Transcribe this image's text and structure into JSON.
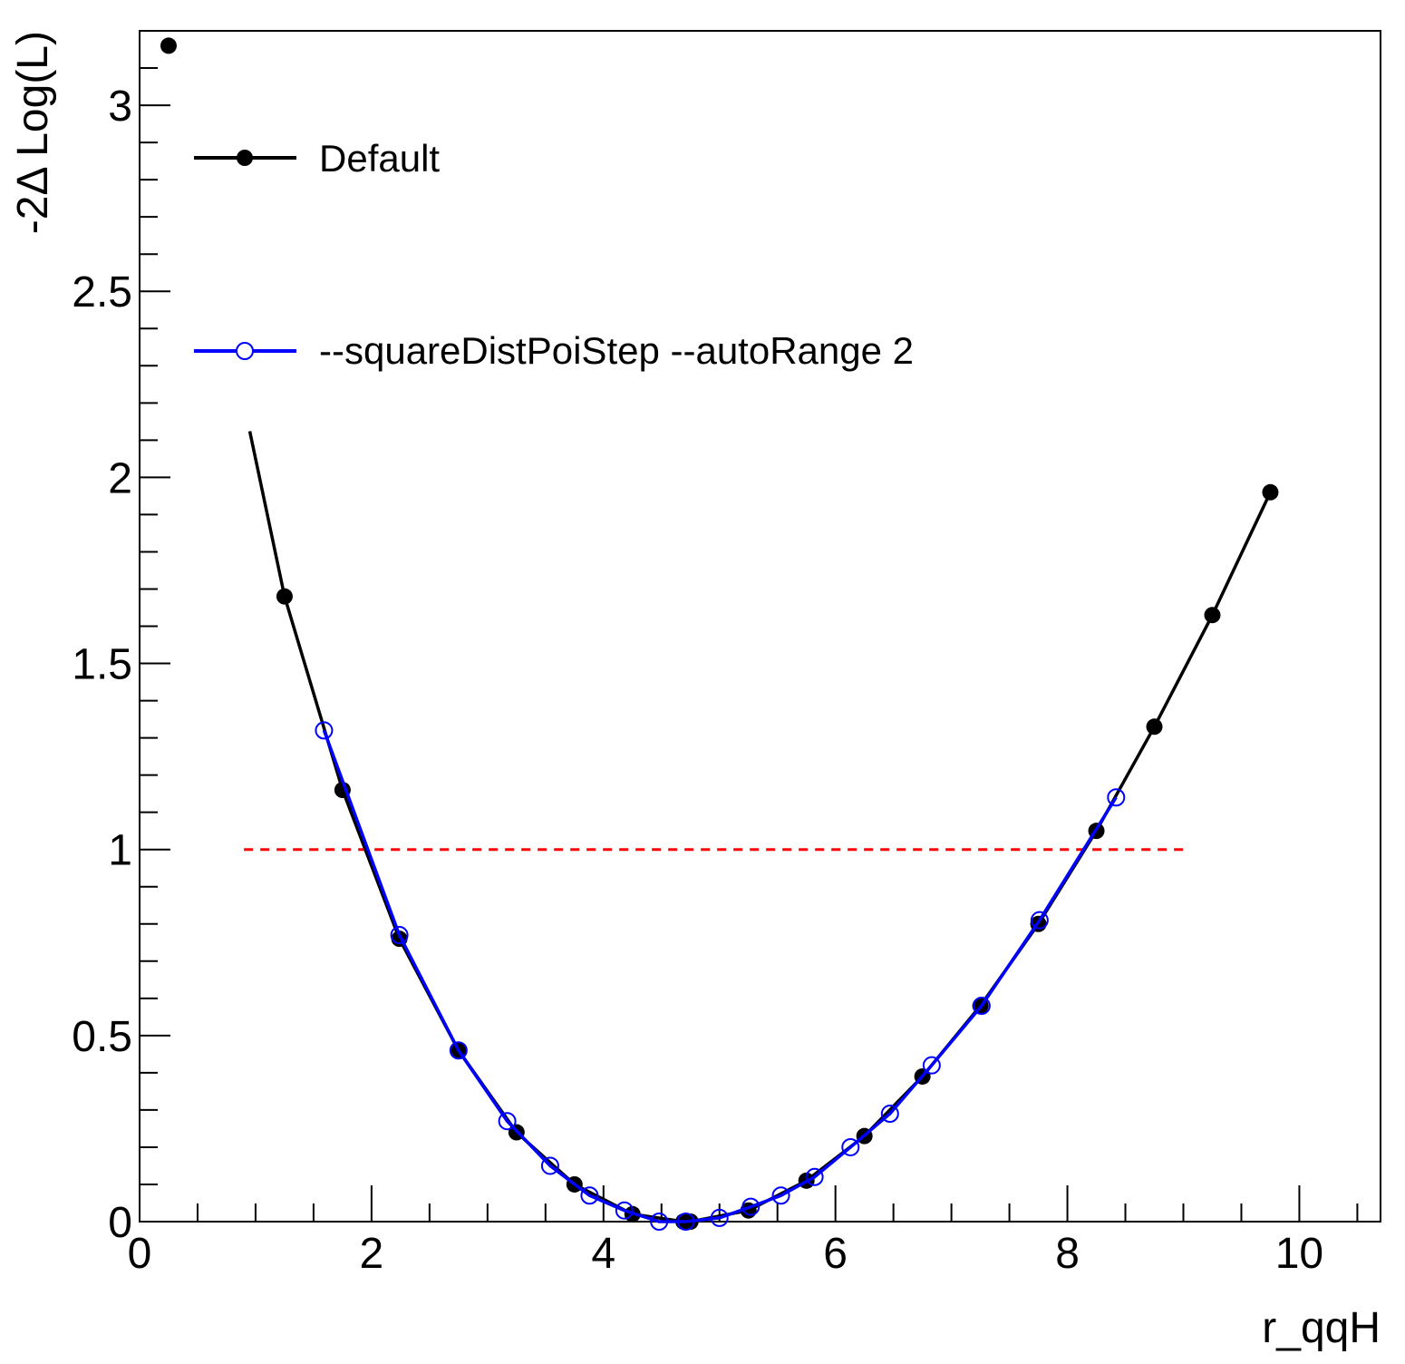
{
  "chart_data": {
    "type": "line",
    "title": "",
    "xlabel": "r_qqH",
    "ylabel": "-2Δ Log(L)",
    "xlim": [
      0,
      10.7
    ],
    "ylim": [
      0,
      3.2
    ],
    "x_ticks": [
      "0",
      "2",
      "4",
      "6",
      "8",
      "10"
    ],
    "y_ticks": [
      "0",
      "0.5",
      "1",
      "1.5",
      "2",
      "2.5",
      "3"
    ],
    "grid": false,
    "legend_position": "top-left",
    "series": [
      {
        "name": "Default",
        "color": "#000000",
        "marker": "filled-circle",
        "x": [
          0.25,
          1.25,
          1.75,
          2.24,
          2.75,
          3.25,
          3.75,
          4.25,
          4.69,
          4.75,
          5.25,
          5.75,
          6.25,
          6.75,
          7.25,
          7.75,
          8.25,
          8.75,
          9.25,
          9.75
        ],
        "y": [
          3.16,
          1.68,
          1.16,
          0.76,
          0.46,
          0.24,
          0.1,
          0.02,
          0.0,
          0.0,
          0.03,
          0.11,
          0.23,
          0.39,
          0.58,
          0.8,
          1.05,
          1.33,
          1.63,
          1.96
        ]
      },
      {
        "name": "--squareDistPoiStep --autoRange 2",
        "color": "#0000ff",
        "marker": "open-circle",
        "x": [
          1.59,
          2.24,
          2.75,
          3.17,
          3.54,
          3.88,
          4.18,
          4.48,
          4.71,
          5.0,
          5.27,
          5.53,
          5.82,
          6.13,
          6.47,
          6.83,
          7.26,
          7.76,
          8.42
        ],
        "y": [
          1.32,
          0.77,
          0.46,
          0.27,
          0.15,
          0.07,
          0.03,
          0.0,
          0.0,
          0.01,
          0.04,
          0.07,
          0.12,
          0.2,
          0.29,
          0.42,
          0.58,
          0.81,
          1.14
        ]
      }
    ],
    "reference_line": {
      "y": 1,
      "x_range": [
        0.9,
        9.04
      ],
      "color": "#ff0000",
      "style": "dashed"
    }
  }
}
